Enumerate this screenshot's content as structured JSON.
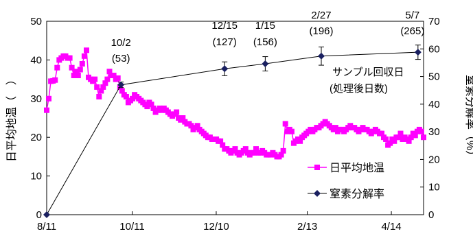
{
  "chart_data": {
    "type": "line",
    "x_ticks": [
      {
        "day": 0,
        "label": "8/11"
      },
      {
        "day": 61,
        "label": "10/11"
      },
      {
        "day": 121,
        "label": "12/10"
      },
      {
        "day": 186,
        "label": "2/13"
      },
      {
        "day": 246,
        "label": "4/14"
      }
    ],
    "xlim": [
      0,
      269
    ],
    "ylim_left": [
      0,
      50
    ],
    "y_ticks_left": [
      "0",
      "10",
      "20",
      "30",
      "40",
      "50"
    ],
    "ylim_right": [
      0,
      70
    ],
    "y_ticks_right": [
      "0",
      "10",
      "20",
      "30",
      "40",
      "50",
      "60",
      "70"
    ],
    "ylabel_left": "日平均地温（　）",
    "ylabel_right": "窒素分解率（%）",
    "annotation_title": [
      "サンプル回収日",
      "(処理後日数)"
    ],
    "sampling_points": [
      {
        "date": "",
        "days": "",
        "x": 0,
        "y": 0,
        "err": 0
      },
      {
        "date": "10/2",
        "days": "(53)",
        "x": 53,
        "y": 47,
        "err": 1
      },
      {
        "date": "12/15",
        "days": "(127)",
        "x": 127,
        "y": 52.8,
        "err": 2.5
      },
      {
        "date": "1/15",
        "days": "(156)",
        "x": 156,
        "y": 54.6,
        "err": 2.6
      },
      {
        "date": "2/27",
        "days": "(196)",
        "x": 196,
        "y": 57.4,
        "err": 3.3
      },
      {
        "date": "5/7",
        "days": "(265)",
        "x": 265,
        "y": 58.8,
        "err": 2.6
      }
    ],
    "series": [
      {
        "name": "日平均地温",
        "axis": "left",
        "color": "#ff00ff",
        "marker": "square",
        "values": [
          27,
          30,
          34.5,
          34.6,
          34.8,
          38,
          40,
          40.5,
          41,
          41,
          40.5,
          40.5,
          38,
          36,
          37,
          36,
          37.5,
          39,
          41,
          42.5,
          35.5,
          35,
          34.5,
          35,
          33,
          30.5,
          32,
          33,
          34,
          35,
          37,
          36,
          36,
          35,
          35.3,
          33,
          32,
          31,
          30.5,
          29,
          29.5,
          30,
          31,
          30.5,
          30,
          29.5,
          29,
          28.5,
          28,
          29,
          28.5,
          27.5,
          26.5,
          27,
          27.5,
          27,
          27.5,
          27,
          26.5,
          26,
          25.5,
          26,
          26.5,
          25,
          24.5,
          25,
          24,
          23.5,
          23.5,
          23,
          22,
          22.5,
          23,
          22,
          21.5,
          21,
          20.5,
          20,
          20,
          19.5,
          19.5,
          19.5,
          19,
          19,
          18,
          17,
          17,
          16.5,
          16,
          16.5,
          17,
          16,
          15.5,
          16,
          16.5,
          17,
          16,
          15.5,
          16,
          16,
          17,
          16,
          16,
          16.5,
          16,
          15.5,
          15.5,
          15.5,
          16,
          15.5,
          15,
          15,
          15.5,
          16.5,
          23.5,
          21.5,
          22,
          21.5,
          18.5,
          19,
          19.5,
          19,
          20,
          20.5,
          21,
          21.5,
          22,
          21.5,
          22,
          22.5,
          22.5,
          23,
          23.5,
          24,
          23.5,
          23,
          22.5,
          22,
          22.5,
          21.5,
          22,
          22,
          21.5,
          22,
          22.5,
          23,
          22.5,
          22.5,
          22,
          21.5,
          22,
          22.5,
          22,
          22,
          21.5,
          21,
          21.5,
          22,
          21.5,
          21,
          21,
          20,
          19.5,
          18,
          18.5,
          19.5,
          19,
          20,
          20,
          21,
          19.5,
          20,
          19.5,
          19,
          20,
          21,
          20.5,
          21.5,
          22,
          21.5,
          20
        ]
      },
      {
        "name": "窒素分解率",
        "axis": "right",
        "color": "#1a2060",
        "marker": "diamond",
        "values": [
          0,
          47,
          52.8,
          54.6,
          57.4,
          58.8
        ]
      }
    ],
    "legend": "bottom-right"
  }
}
